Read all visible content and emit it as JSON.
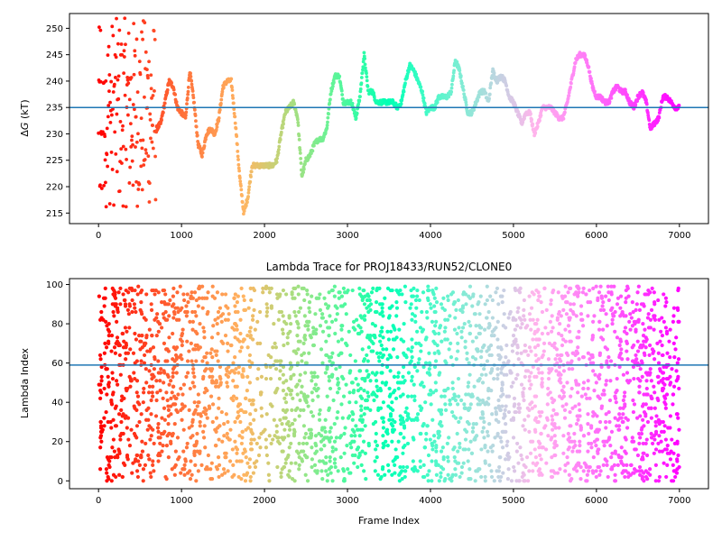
{
  "chart_data": [
    {
      "type": "scatter",
      "title": "",
      "xlabel": "",
      "ylabel": "ΔG (kT)",
      "ylabel_math": "Δ",
      "ylabel_var": "G",
      "ylabel_unit": " (kT)",
      "xlim": [
        -350,
        7350
      ],
      "ylim": [
        213,
        252.8
      ],
      "xticks": [
        0,
        1000,
        2000,
        3000,
        4000,
        5000,
        6000,
        7000
      ],
      "xtick_labels": [
        "0",
        "1000",
        "2000",
        "3000",
        "4000",
        "5000",
        "6000",
        "7000"
      ],
      "yticks": [
        215,
        220,
        225,
        230,
        235,
        240,
        245,
        250
      ],
      "ytick_labels": [
        "215",
        "220",
        "225",
        "230",
        "235",
        "240",
        "245",
        "250"
      ],
      "grid": false,
      "colormap": "rainbow (reversed: red at frame 0, violet at frame 7000)",
      "hline": {
        "y": 235.0,
        "color": "#1f77b4"
      },
      "series": [
        {
          "x": [
            0,
            50,
            100,
            150,
            200,
            250,
            300,
            350,
            400,
            450,
            500,
            550,
            600,
            650,
            700,
            750,
            800,
            850,
            900,
            950,
            1000,
            1050,
            1100,
            1150,
            1200,
            1250,
            1300,
            1350,
            1400,
            1450,
            1500,
            1550,
            1600,
            1650,
            1700,
            1750,
            1800,
            1850,
            1900,
            1950,
            2000,
            2050,
            2100,
            2150,
            2200,
            2250,
            2300,
            2350,
            2400,
            2450,
            2500,
            2550,
            2600,
            2650,
            2700,
            2750,
            2800,
            2850,
            2900,
            2950,
            3000,
            3050,
            3100,
            3150,
            3200,
            3250,
            3300,
            3350,
            3400,
            3450,
            3500,
            3550,
            3600,
            3650,
            3700,
            3750,
            3800,
            3850,
            3900,
            3950,
            4000,
            4050,
            4100,
            4150,
            4200,
            4250,
            4300,
            4350,
            4400,
            4450,
            4500,
            4550,
            4600,
            4650,
            4700,
            4750,
            4800,
            4850,
            4900,
            4950,
            5000,
            5050,
            5100,
            5150,
            5200,
            5250,
            5300,
            5350,
            5400,
            5450,
            5500,
            5550,
            5600,
            5650,
            5700,
            5750,
            5800,
            5850,
            5900,
            5950,
            6000,
            6050,
            6100,
            6150,
            6200,
            6250,
            6300,
            6350,
            6400,
            6450,
            6500,
            6550,
            6600,
            6650,
            6700,
            6750,
            6800,
            6850,
            6900,
            6950
          ],
          "y": [
            235,
            240,
            228,
            242,
            230,
            246,
            232,
            244,
            236,
            248,
            240,
            236,
            238,
            232,
            231,
            232,
            236,
            240,
            239,
            235,
            234,
            233,
            242,
            236,
            228,
            226,
            230,
            231,
            230,
            233,
            239,
            240,
            240,
            232,
            222,
            215,
            218,
            224,
            224,
            224,
            224,
            224,
            224,
            225,
            230,
            234,
            235,
            236,
            233,
            222,
            225,
            226,
            228,
            229,
            229,
            231,
            238,
            241,
            241,
            236,
            236,
            236,
            233,
            237,
            245,
            238,
            238,
            236,
            236,
            236,
            236,
            236,
            235,
            236,
            240,
            243,
            242,
            240,
            238,
            234,
            235,
            235,
            237,
            237,
            237,
            238,
            244,
            242,
            238,
            234,
            234,
            236,
            238,
            238,
            236,
            242,
            240,
            241,
            240,
            237,
            236,
            234,
            232,
            234,
            234,
            230,
            232,
            235,
            235,
            235,
            234,
            233,
            233,
            236,
            240,
            244,
            245,
            245,
            243,
            239,
            237,
            237,
            236,
            236,
            238,
            239,
            238,
            238,
            236,
            235,
            237,
            238,
            236,
            231,
            232,
            233,
            237,
            237,
            236,
            235
          ],
          "scatter_note": "Early frames 0–700 are widely scattered between 216 and 252; frames after ~700 form a continuous trace."
        }
      ]
    },
    {
      "type": "scatter",
      "title": "Lambda Trace for PROJ18433/RUN52/CLONE0",
      "xlabel": "Frame Index",
      "ylabel": "Lambda Index",
      "xlim": [
        -350,
        7350
      ],
      "ylim": [
        -4,
        103
      ],
      "xticks": [
        0,
        1000,
        2000,
        3000,
        4000,
        5000,
        6000,
        7000
      ],
      "xtick_labels": [
        "0",
        "1000",
        "2000",
        "3000",
        "4000",
        "5000",
        "6000",
        "7000"
      ],
      "yticks": [
        0,
        20,
        40,
        60,
        80,
        100
      ],
      "ytick_labels": [
        "0",
        "20",
        "40",
        "60",
        "80",
        "100"
      ],
      "grid": false,
      "colormap": "rainbow (reversed: red at frame 0, violet at frame 7000)",
      "hline": {
        "y": 59,
        "color": "#1f77b4"
      },
      "series": [
        {
          "x_range": [
            0,
            7000
          ],
          "y_range": [
            0,
            99
          ],
          "n_points": 7000,
          "distribution_note": "Dense scatter of lambda indices 0–99 across all frames; sparser bands near frames 1900–2100, 3100 and 3500."
        }
      ]
    }
  ]
}
